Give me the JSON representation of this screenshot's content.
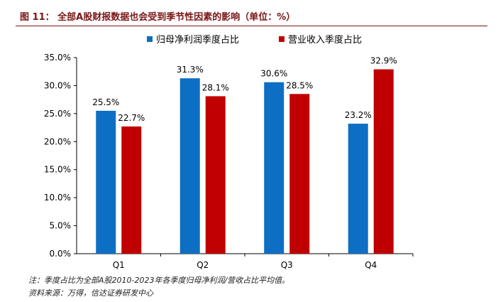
{
  "title": "图 11： 全部A股财报数据也会受到季节性因素的影响（单位：%）",
  "note": "注：季度占比为全部A股2010-2023年各季度归母净利润/营收占比平均值。",
  "source": "资料来源：万得，信达证券研发中心",
  "colors": {
    "title": "#7a1515",
    "series_blue": "#0d6fc4",
    "series_red": "#c00000"
  },
  "chart_data": {
    "type": "bar",
    "categories": [
      "Q1",
      "Q2",
      "Q3",
      "Q4"
    ],
    "series": [
      {
        "name": "归母净利润季度占比",
        "values": [
          25.5,
          31.3,
          30.6,
          23.2
        ],
        "labels": [
          "25.5%",
          "31.3%",
          "30.6%",
          "23.2%"
        ]
      },
      {
        "name": "营业收入季度占比",
        "values": [
          22.7,
          28.1,
          28.5,
          32.9
        ],
        "labels": [
          "22.7%",
          "28.1%",
          "28.5%",
          "32.9%"
        ]
      }
    ],
    "yticks": [
      "0.0%",
      "5.0%",
      "10.0%",
      "15.0%",
      "20.0%",
      "25.0%",
      "30.0%",
      "35.0%"
    ],
    "ylim": [
      0,
      35
    ],
    "grid": false,
    "legend": "top"
  }
}
